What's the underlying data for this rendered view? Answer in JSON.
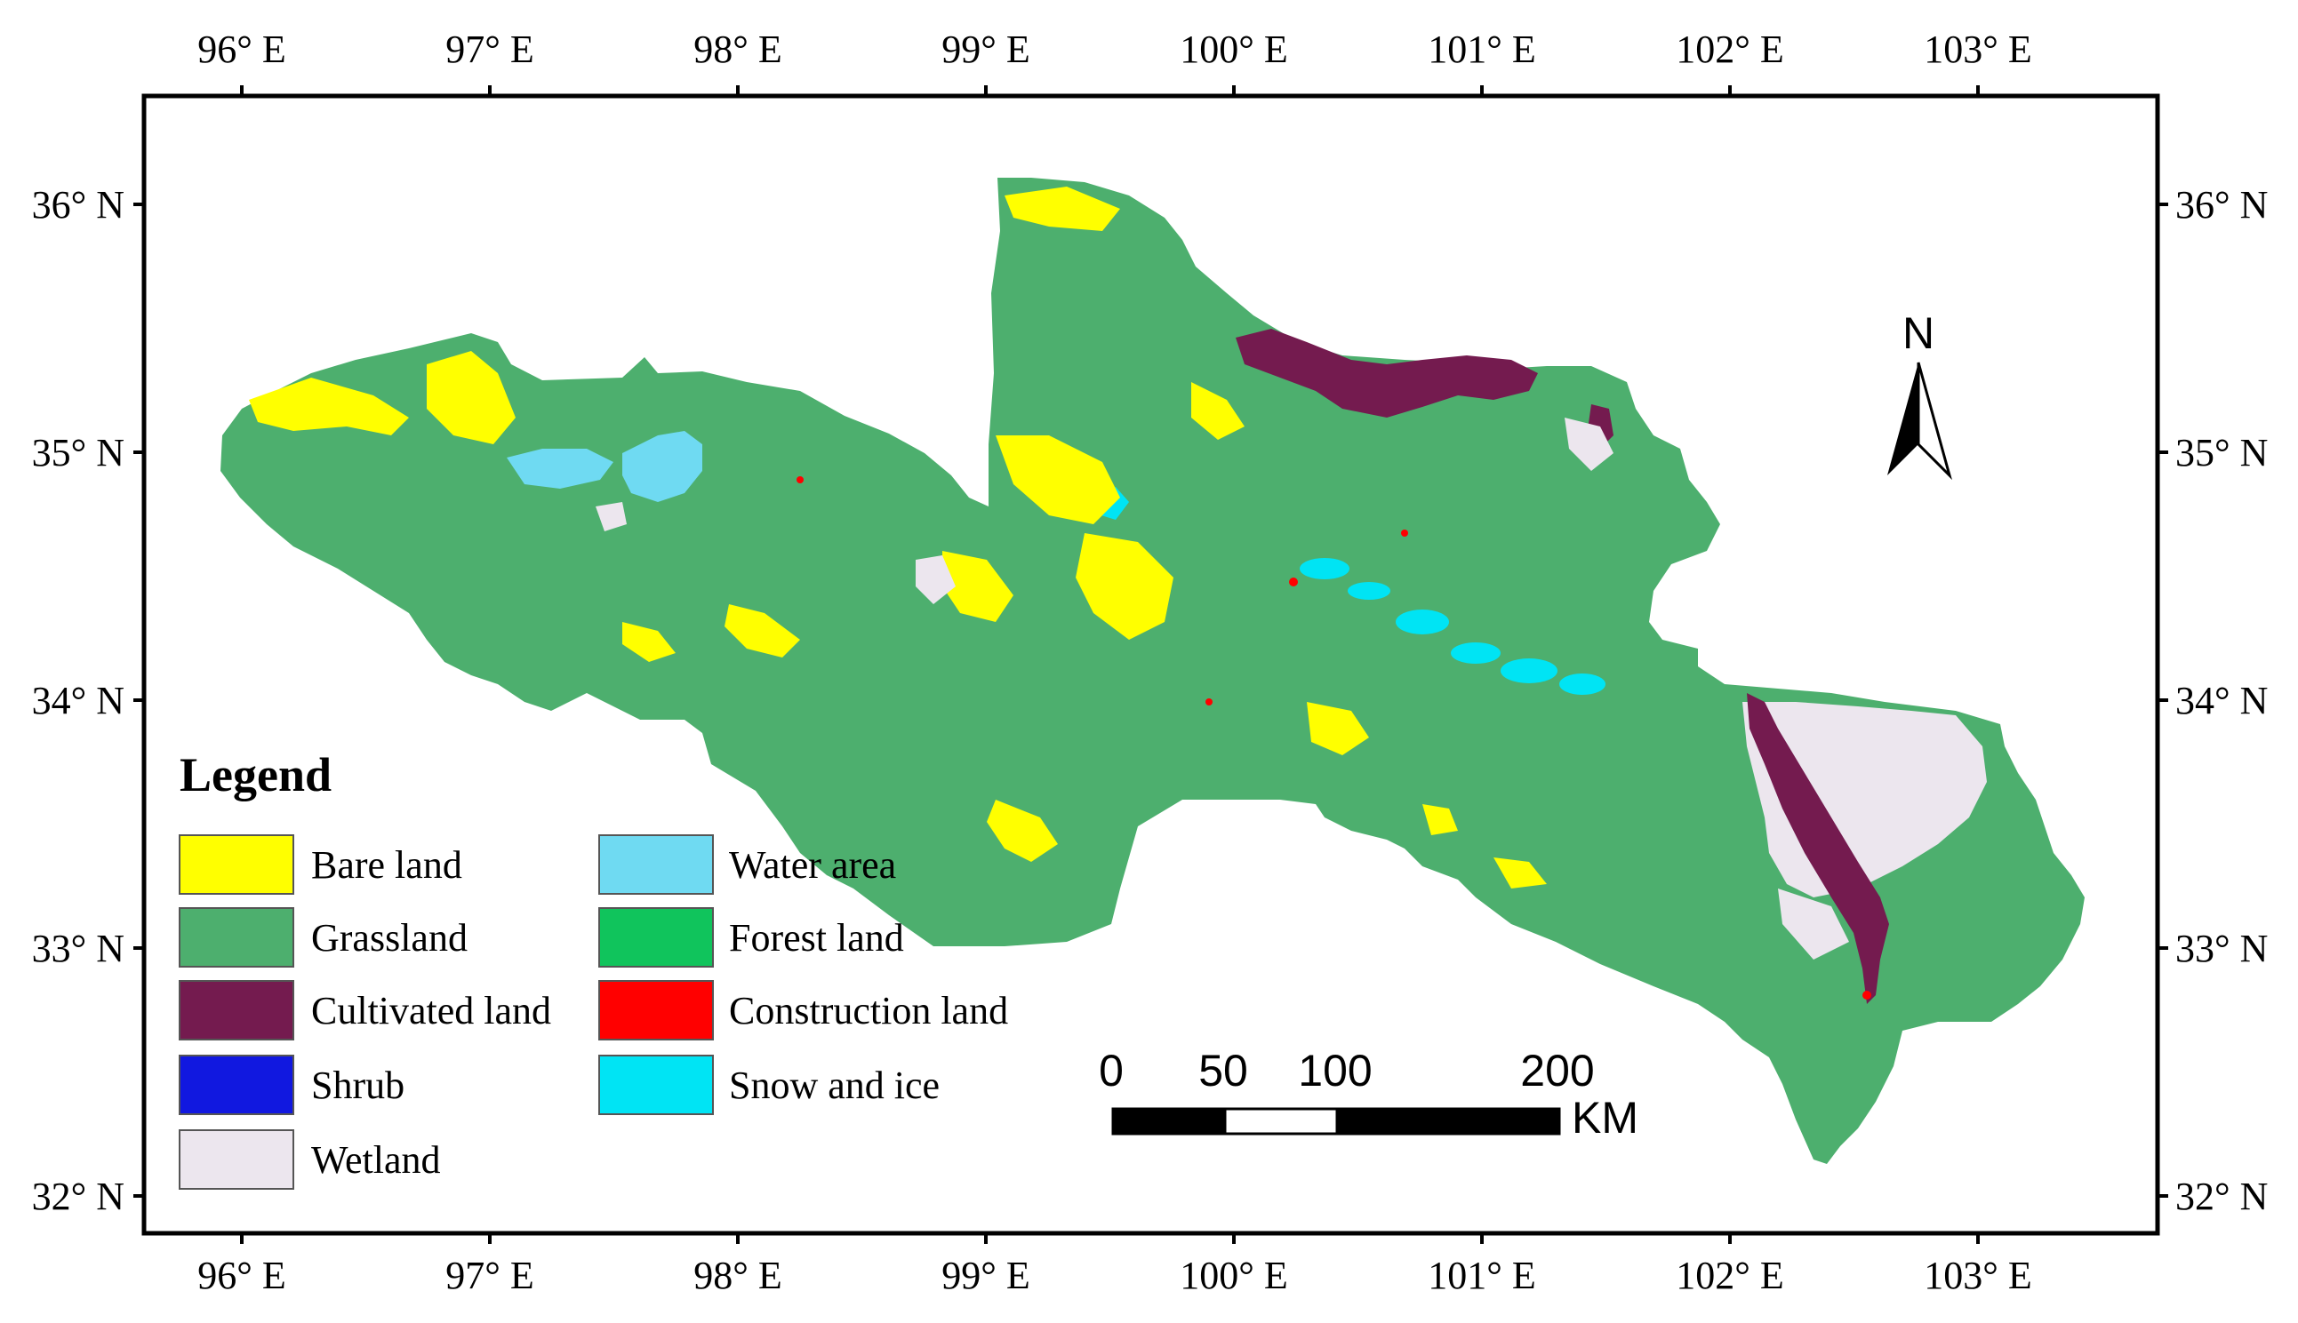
{
  "map": {
    "lon_labels": [
      "96° E",
      "97° E",
      "98° E",
      "99° E",
      "100° E",
      "101° E",
      "102° E",
      "103° E"
    ],
    "lat_labels": [
      "36° N",
      "35° N",
      "34° N",
      "33° N",
      "32° N"
    ],
    "legend": {
      "title": "Legend",
      "items": [
        {
          "label": "Bare land",
          "color": "#ffff00"
        },
        {
          "label": "Grassland",
          "color": "#4daf6e"
        },
        {
          "label": "Cultivated land",
          "color": "#741b4f"
        },
        {
          "label": "Shrub",
          "color": "#1118e0"
        },
        {
          "label": "Wetland",
          "color": "#ece6ee"
        },
        {
          "label": "Water area",
          "color": "#6fdaf2"
        },
        {
          "label": "Forest land",
          "color": "#10c45c"
        },
        {
          "label": "Construction land",
          "color": "#ff0000"
        },
        {
          "label": "Snow and ice",
          "color": "#00e4f4"
        }
      ]
    },
    "scale_bar": {
      "labels": [
        "0",
        "50",
        "100",
        "200"
      ],
      "unit": "KM"
    },
    "north_arrow": {
      "label": "N"
    }
  }
}
